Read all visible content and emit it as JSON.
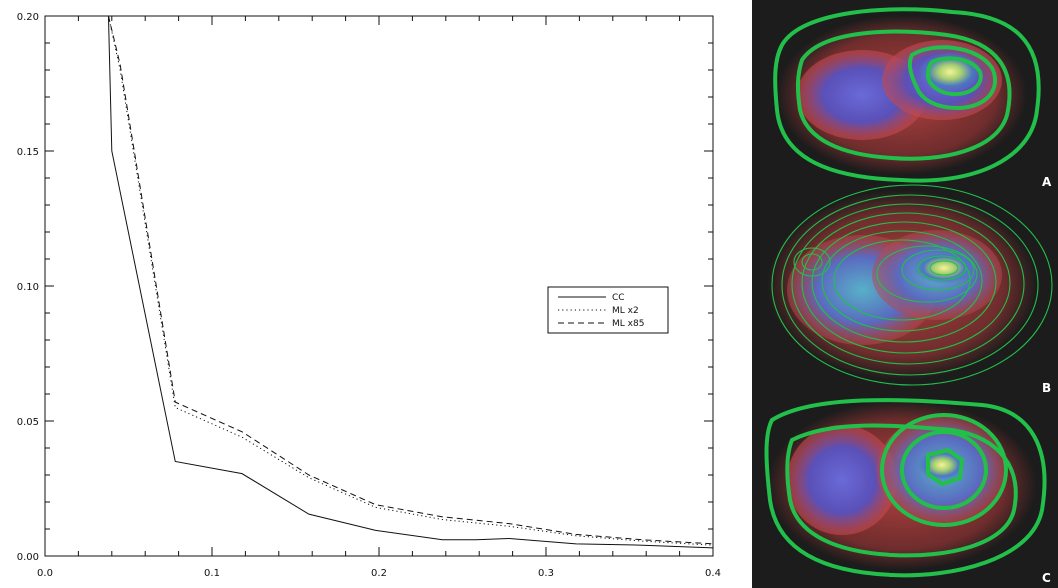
{
  "chart_data": {
    "type": "line",
    "xlim": [
      0.0,
      0.4
    ],
    "ylim": [
      0.0,
      0.2
    ],
    "x_ticks": [
      0.0,
      0.1,
      0.2,
      0.3,
      0.4
    ],
    "x_tick_labels": [
      "0.0",
      "0.1",
      "0.2",
      "0.3",
      "0.4"
    ],
    "y_ticks": [
      0.0,
      0.05,
      0.1,
      0.15,
      0.2
    ],
    "y_tick_labels": [
      "0.00",
      "0.05",
      "0.10",
      "0.15",
      "0.20"
    ],
    "grid": false,
    "legend_position": "right",
    "series": [
      {
        "name": "CC",
        "style": "solid",
        "x": [
          0.038,
          0.04,
          0.078,
          0.118,
          0.158,
          0.198,
          0.238,
          0.258,
          0.278,
          0.318,
          0.358,
          0.4
        ],
        "y": [
          0.2,
          0.15,
          0.035,
          0.0305,
          0.0155,
          0.0095,
          0.006,
          0.006,
          0.0065,
          0.0045,
          0.004,
          0.003
        ]
      },
      {
        "name": "ML x2",
        "style": "dotted",
        "x": [
          0.038,
          0.045,
          0.078,
          0.118,
          0.158,
          0.198,
          0.238,
          0.278,
          0.318,
          0.358,
          0.4
        ],
        "y": [
          0.2,
          0.18,
          0.055,
          0.044,
          0.029,
          0.018,
          0.0135,
          0.011,
          0.0075,
          0.0055,
          0.004
        ]
      },
      {
        "name": "ML x85",
        "style": "dashed",
        "x": [
          0.038,
          0.045,
          0.078,
          0.118,
          0.158,
          0.198,
          0.238,
          0.278,
          0.318,
          0.358,
          0.4
        ],
        "y": [
          0.2,
          0.182,
          0.057,
          0.046,
          0.03,
          0.019,
          0.0145,
          0.012,
          0.008,
          0.006,
          0.0045
        ]
      }
    ]
  },
  "images": {
    "panel_labels": [
      "A",
      "B",
      "C"
    ],
    "contour_color": "#22c04a",
    "background_color": "#1c1c1c",
    "noise_color": "#d03838",
    "core_color": "#f2f08a"
  }
}
